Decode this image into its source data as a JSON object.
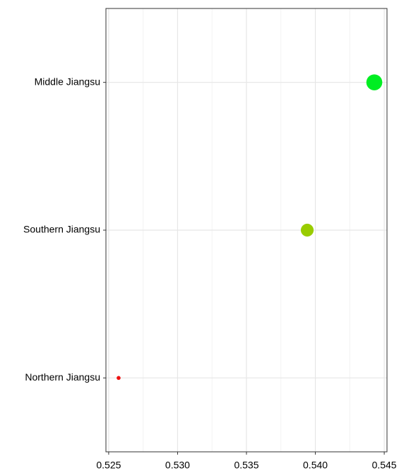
{
  "chart_data": {
    "type": "dot",
    "categories": [
      "Middle Jiangsu",
      "Southern Jiangsu",
      "Northern Jiangsu"
    ],
    "values": [
      0.54428,
      0.53941,
      0.52572
    ],
    "colors": [
      "#00ee22",
      "#99cc00",
      "#ee1111"
    ],
    "xlim": [
      0.5248,
      0.5452
    ],
    "xticks": [
      0.525,
      {
        "value": 0.53,
        "label": "0.530"
      },
      0.535,
      {
        "value": 0.54,
        "label": "0.540"
      },
      0.545
    ],
    "grid": true
  }
}
